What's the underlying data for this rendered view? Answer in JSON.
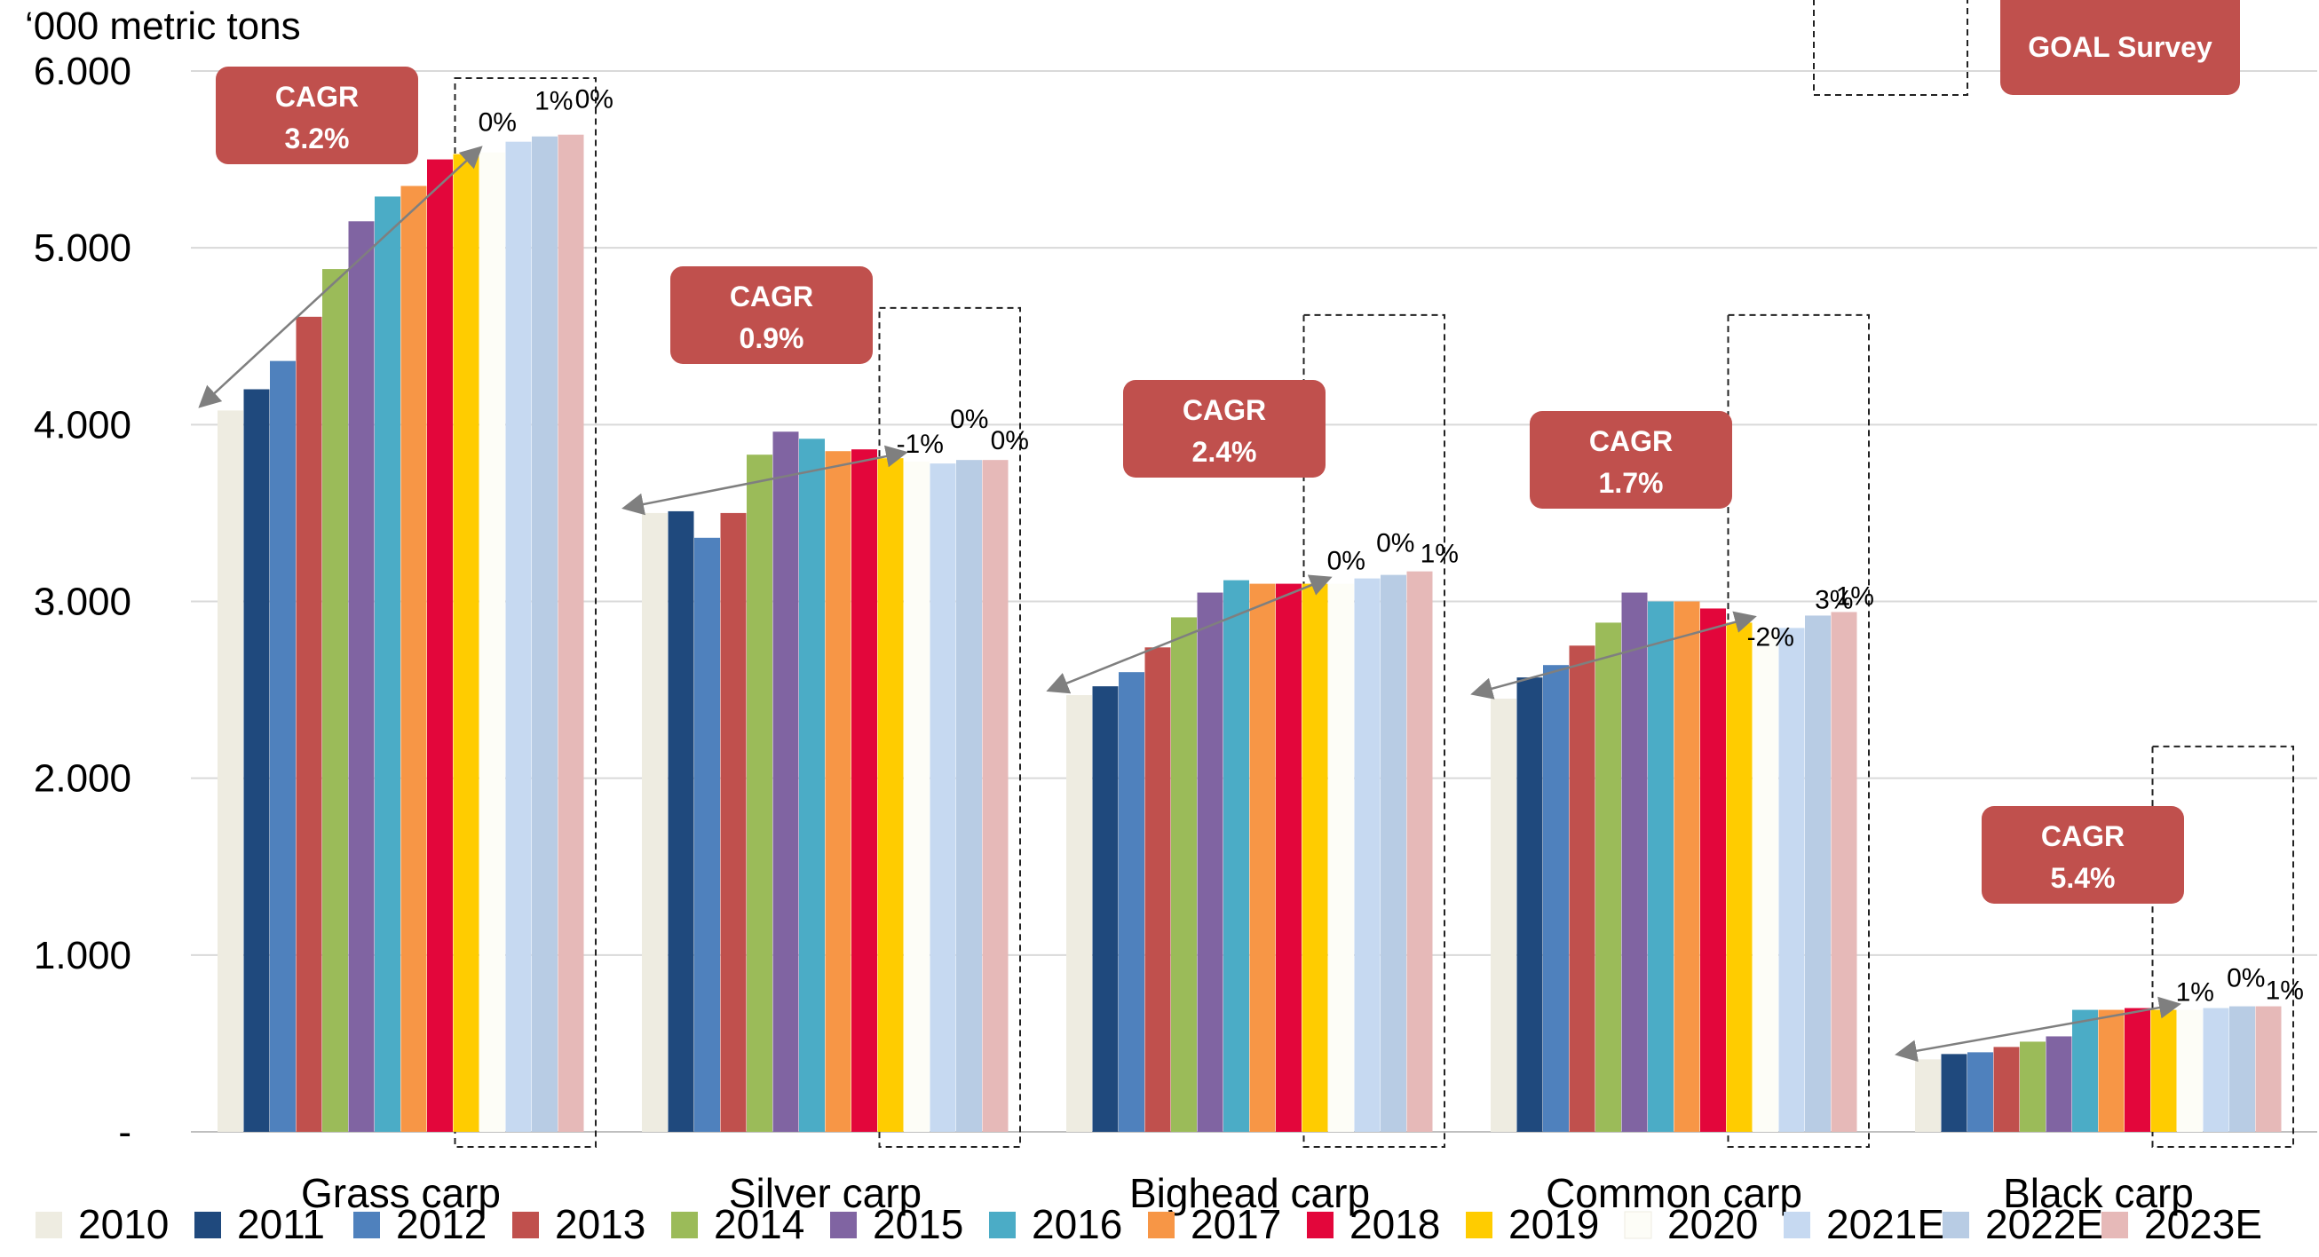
{
  "chart_data": {
    "type": "bar",
    "ylabel": "‘000 metric tons",
    "ylim": [
      0,
      6000
    ],
    "y_ticks": [
      {
        "value": 6000,
        "label": "6.000"
      },
      {
        "value": 5000,
        "label": "5.000"
      },
      {
        "value": 4000,
        "label": "4.000"
      },
      {
        "value": 3000,
        "label": "3.000"
      },
      {
        "value": 2000,
        "label": "2.000"
      },
      {
        "value": 1000,
        "label": "1.000"
      },
      {
        "value": 0,
        "label": "-"
      }
    ],
    "grid": true,
    "legend_position": "bottom",
    "categories": [
      "Grass carp",
      "Silver carp",
      "Bighead carp",
      "Common carp",
      "Black carp"
    ],
    "series": [
      {
        "name": "2010",
        "color": "#EEECE1",
        "values": [
          4080,
          3500,
          2470,
          2450,
          410
        ]
      },
      {
        "name": "2011",
        "color": "#1F497D",
        "values": [
          4200,
          3510,
          2520,
          2570,
          440
        ]
      },
      {
        "name": "2012",
        "color": "#4F81BD",
        "values": [
          4360,
          3360,
          2600,
          2640,
          450
        ]
      },
      {
        "name": "2013",
        "color": "#C0504D",
        "values": [
          4610,
          3500,
          2740,
          2750,
          480
        ]
      },
      {
        "name": "2014",
        "color": "#9BBB59",
        "values": [
          4880,
          3830,
          2910,
          2880,
          510
        ]
      },
      {
        "name": "2015",
        "color": "#8064A2",
        "values": [
          5150,
          3960,
          3050,
          3050,
          540
        ]
      },
      {
        "name": "2016",
        "color": "#4BACC6",
        "values": [
          5290,
          3920,
          3120,
          3000,
          690
        ]
      },
      {
        "name": "2017",
        "color": "#F79646",
        "values": [
          5350,
          3850,
          3100,
          3000,
          690
        ]
      },
      {
        "name": "2018",
        "color": "#E3063B",
        "values": [
          5500,
          3860,
          3100,
          2960,
          700
        ]
      },
      {
        "name": "2019",
        "color": "#FFCC00",
        "values": [
          5530,
          3810,
          3100,
          2880,
          690
        ]
      },
      {
        "name": "2020",
        "color": "#FDFDF7",
        "values": [
          5540,
          3790,
          3100,
          2830,
          690
        ]
      },
      {
        "name": "2021E",
        "color": "#C6D9F1",
        "values": [
          5600,
          3780,
          3130,
          2850,
          700
        ]
      },
      {
        "name": "2022E",
        "color": "#B8CCE4",
        "values": [
          5630,
          3800,
          3150,
          2920,
          710
        ]
      },
      {
        "name": "2023E",
        "color": "#E6B9B8",
        "values": [
          5640,
          3800,
          3170,
          2940,
          710
        ]
      }
    ],
    "cagr_badges": [
      {
        "label": "CAGR",
        "value": "3.2%"
      },
      {
        "label": "CAGR",
        "value": "0.9%"
      },
      {
        "label": "CAGR",
        "value": "2.4%"
      },
      {
        "label": "CAGR",
        "value": "1.7%"
      },
      {
        "label": "CAGR",
        "value": "5.4%"
      }
    ],
    "growth_labels": [
      [
        "0%",
        "1%",
        "0%"
      ],
      [
        "-1%",
        "0%",
        "0%"
      ],
      [
        "0%",
        "0%",
        "1%"
      ],
      [
        "-2%",
        "3%",
        "1%"
      ],
      [
        "1%",
        "0%",
        "1%"
      ]
    ],
    "source_badge": "GOAL Survey",
    "accent_color": "#C0504D"
  }
}
